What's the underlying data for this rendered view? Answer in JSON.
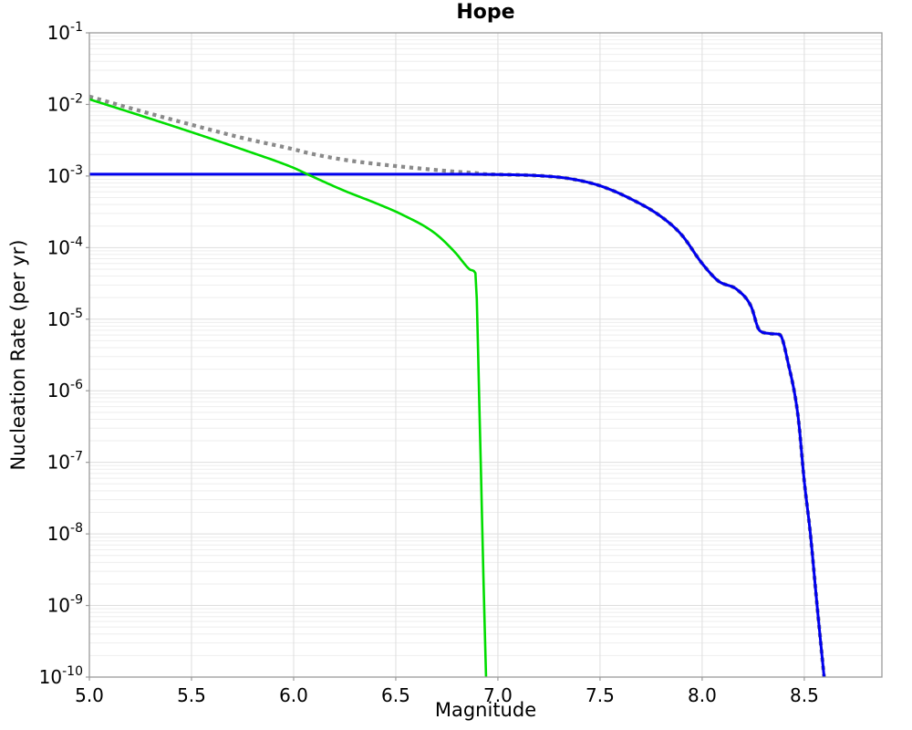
{
  "chart_data": {
    "type": "line",
    "title": "Hope",
    "xlabel": "Magnitude",
    "ylabel": "Nucleation Rate (per yr)",
    "x_scale": "linear",
    "y_scale": "log",
    "xlim": [
      5.0,
      8.88
    ],
    "ylim": [
      1e-10,
      0.1
    ],
    "ylim_log10": [
      -10,
      -1
    ],
    "xticks": [
      5.0,
      5.5,
      6.0,
      6.5,
      7.0,
      7.5,
      8.0,
      8.5
    ],
    "xtick_labels": [
      "5.0",
      "5.5",
      "6.0",
      "6.5",
      "7.0",
      "7.5",
      "8.0",
      "8.5"
    ],
    "ytick_exponents": [
      -1,
      -2,
      -3,
      -4,
      -5,
      -6,
      -7,
      -8,
      -9,
      -10
    ],
    "grid": "major+minor horizontal log grid, vertical grid every 0.5 magnitude",
    "legend": "none",
    "colors": {
      "grid_minor": "#eeeeee",
      "grid_major": "#dedede",
      "frame": "#9b9b9b",
      "background": "#ffffff"
    },
    "series": [
      {
        "name": "gray-dotted-total",
        "style": "dotted",
        "color": "#8a8a8a",
        "width": 4.2,
        "note": "equals sum of green and blue curves; overlaps blue curve for magnitude > 7",
        "points": [
          [
            5.0,
            0.0129
          ],
          [
            5.25,
            0.0081
          ],
          [
            5.5,
            0.0052
          ],
          [
            5.75,
            0.0034
          ],
          [
            6.0,
            0.00236
          ],
          [
            6.07,
            0.0021
          ],
          [
            6.25,
            0.00168
          ],
          [
            6.4,
            0.00148
          ],
          [
            6.53,
            0.00135
          ],
          [
            6.69,
            0.00122
          ],
          [
            6.79,
            0.00115
          ],
          [
            6.89,
            0.0011
          ],
          [
            6.94,
            0.00106
          ],
          [
            7.0,
            0.00105
          ],
          [
            7.2,
            0.00101
          ],
          [
            7.35,
            0.00092
          ],
          [
            7.5,
            0.00073
          ],
          [
            7.65,
            0.00048
          ],
          [
            7.8,
            0.00027
          ],
          [
            7.9,
            0.00015
          ],
          [
            8.0,
            6e-05
          ],
          [
            8.08,
            3.4e-05
          ],
          [
            8.17,
            2.6e-05
          ],
          [
            8.24,
            1.5e-05
          ],
          [
            8.28,
            7e-06
          ],
          [
            8.33,
            6.3e-06
          ],
          [
            8.38,
            6.1e-06
          ],
          [
            8.42,
            2.5e-06
          ],
          [
            8.47,
            4.3e-07
          ],
          [
            8.5,
            5.4e-08
          ],
          [
            8.53,
            1e-08
          ],
          [
            8.56,
            1.2e-09
          ],
          [
            8.597,
            1e-10
          ]
        ]
      },
      {
        "name": "blue-solid",
        "style": "solid",
        "color": "#0000ee",
        "width": 3,
        "points": [
          [
            5.0,
            0.00106
          ],
          [
            6.0,
            0.00106
          ],
          [
            6.8,
            0.00106
          ],
          [
            7.0,
            0.00105
          ],
          [
            7.2,
            0.00101
          ],
          [
            7.35,
            0.00092
          ],
          [
            7.5,
            0.00073
          ],
          [
            7.65,
            0.00048
          ],
          [
            7.8,
            0.00027
          ],
          [
            7.9,
            0.00015
          ],
          [
            8.0,
            6e-05
          ],
          [
            8.08,
            3.4e-05
          ],
          [
            8.17,
            2.6e-05
          ],
          [
            8.24,
            1.5e-05
          ],
          [
            8.28,
            7e-06
          ],
          [
            8.33,
            6.3e-06
          ],
          [
            8.38,
            6.1e-06
          ],
          [
            8.42,
            2.5e-06
          ],
          [
            8.47,
            4.3e-07
          ],
          [
            8.5,
            5.4e-08
          ],
          [
            8.53,
            1e-08
          ],
          [
            8.56,
            1.2e-09
          ],
          [
            8.597,
            1e-10
          ]
        ]
      },
      {
        "name": "green-solid",
        "style": "solid",
        "color": "#00dd00",
        "width": 2.6,
        "points": [
          [
            5.0,
            0.0118
          ],
          [
            5.25,
            0.007
          ],
          [
            5.5,
            0.0041
          ],
          [
            5.75,
            0.00235
          ],
          [
            6.0,
            0.0013
          ],
          [
            6.07,
            0.00105
          ],
          [
            6.25,
            0.00062
          ],
          [
            6.4,
            0.00042
          ],
          [
            6.53,
            0.00029
          ],
          [
            6.69,
            0.00016
          ],
          [
            6.79,
            8.6e-05
          ],
          [
            6.86,
            5e-05
          ],
          [
            6.89,
            4.4e-05
          ],
          [
            6.91,
            5e-07
          ],
          [
            6.93,
            2e-09
          ],
          [
            6.942,
            1e-10
          ]
        ]
      }
    ]
  }
}
